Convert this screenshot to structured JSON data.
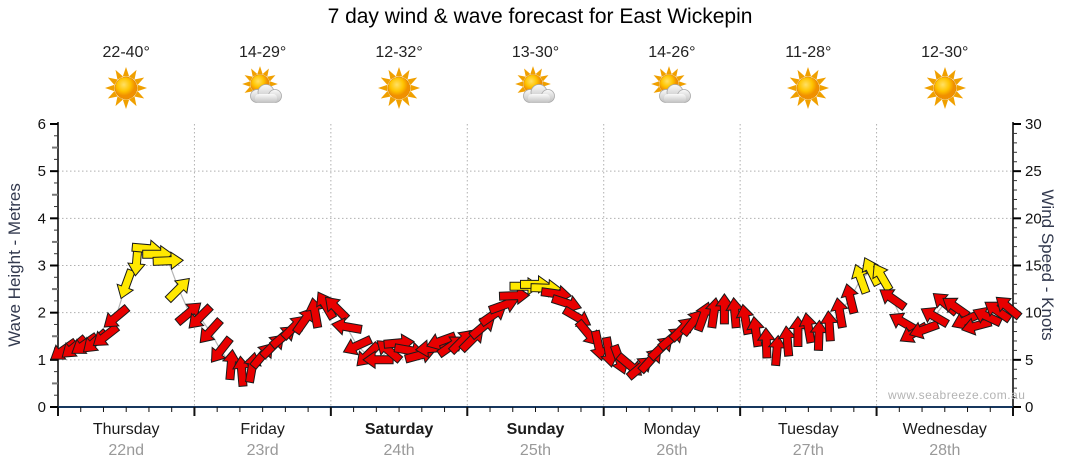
{
  "title": "7 day wind & wave forecast for East Wickepin",
  "watermark": "www.seabreeze.com.au",
  "days": [
    {
      "name": "Thursday",
      "date": "22nd",
      "temp": "22-40°",
      "icon": "sunny",
      "bold": false
    },
    {
      "name": "Friday",
      "date": "23rd",
      "temp": "14-29°",
      "icon": "partly-cloudy",
      "bold": false
    },
    {
      "name": "Saturday",
      "date": "24th",
      "temp": "12-32°",
      "icon": "sunny",
      "bold": true
    },
    {
      "name": "Sunday",
      "date": "25th",
      "temp": "13-30°",
      "icon": "partly-cloudy",
      "bold": true
    },
    {
      "name": "Monday",
      "date": "26th",
      "temp": "14-26°",
      "icon": "partly-cloudy",
      "bold": false
    },
    {
      "name": "Tuesday",
      "date": "27th",
      "temp": "11-28°",
      "icon": "sunny",
      "bold": false
    },
    {
      "name": "Wednesday",
      "date": "28th",
      "temp": "12-30°",
      "icon": "sunny",
      "bold": false
    }
  ],
  "chart_data": {
    "type": "line",
    "description": "Wind arrows plotted by wind speed (right axis, equivalently wave height on left axis); arrow rotation shows wind direction (degrees the arrow points toward, 0=up/N, 90=right/E); colour shows strength band (red lighter, yellow stronger >=12.5 knots)",
    "left_axis": {
      "label": "Wave Height - Metres",
      "min": 0,
      "max": 6,
      "tick_step": 1
    },
    "right_axis": {
      "label": "Wind Speed - Knots",
      "min": 0,
      "max": 30,
      "tick_step": 5
    },
    "x_axis": {
      "categories": [
        "Thursday 22nd",
        "Friday 23rd",
        "Saturday 24th",
        "Sunday 25th",
        "Monday 26th",
        "Tuesday 27th",
        "Wednesday 28th"
      ],
      "points_per_day": 13
    },
    "grid": true,
    "point_format": [
      "wind_speed_knots",
      "direction_deg",
      "color"
    ],
    "series": [
      {
        "name": "Wind speed & direction",
        "points": [
          [
            6,
            235,
            "r"
          ],
          [
            6.3,
            230,
            "r"
          ],
          [
            6.6,
            235,
            "r"
          ],
          [
            6.9,
            228,
            "r"
          ],
          [
            7.5,
            232,
            "r"
          ],
          [
            9.5,
            230,
            "r"
          ],
          [
            13,
            200,
            "y"
          ],
          [
            15.5,
            185,
            "y"
          ],
          [
            16.8,
            95,
            "y"
          ],
          [
            16.2,
            90,
            "y"
          ],
          [
            15.5,
            88,
            "y"
          ],
          [
            12.5,
            45,
            "y"
          ],
          [
            10,
            50,
            "r"
          ],
          [
            9.5,
            225,
            "r"
          ],
          [
            8,
            222,
            "r"
          ],
          [
            6,
            218,
            "r"
          ],
          [
            4.5,
            5,
            "r"
          ],
          [
            3.8,
            355,
            "r"
          ],
          [
            4.2,
            10,
            "r"
          ],
          [
            5.5,
            40,
            "r"
          ],
          [
            6.5,
            45,
            "r"
          ],
          [
            7.5,
            50,
            "r"
          ],
          [
            8.5,
            45,
            "r"
          ],
          [
            9.2,
            35,
            "r"
          ],
          [
            10,
            350,
            "r"
          ],
          [
            10.8,
            330,
            "r"
          ],
          [
            10.5,
            315,
            "r"
          ],
          [
            8.5,
            280,
            "r"
          ],
          [
            6.5,
            245,
            "r"
          ],
          [
            5.5,
            225,
            "r"
          ],
          [
            5,
            270,
            "r"
          ],
          [
            6,
            310,
            "r"
          ],
          [
            6.8,
            85,
            "r"
          ],
          [
            6,
            100,
            "r"
          ],
          [
            5.5,
            75,
            "r"
          ],
          [
            6.2,
            265,
            "r"
          ],
          [
            7,
            250,
            "r"
          ],
          [
            6.5,
            55,
            "r"
          ],
          [
            7,
            45,
            "r"
          ],
          [
            7.2,
            45,
            "r"
          ],
          [
            8.5,
            50,
            "r"
          ],
          [
            9.8,
            55,
            "r"
          ],
          [
            10.8,
            70,
            "r"
          ],
          [
            11.8,
            88,
            "r"
          ],
          [
            12.8,
            90,
            "y"
          ],
          [
            13,
            90,
            "y"
          ],
          [
            12.6,
            92,
            "y"
          ],
          [
            12,
            98,
            "r"
          ],
          [
            11,
            108,
            "r"
          ],
          [
            9.5,
            120,
            "r"
          ],
          [
            7.8,
            140,
            "r"
          ],
          [
            6.5,
            168,
            "r"
          ],
          [
            5.8,
            170,
            "r"
          ],
          [
            5,
            160,
            "r"
          ],
          [
            4.4,
            130,
            "r"
          ],
          [
            4.2,
            50,
            "r"
          ],
          [
            5,
            42,
            "r"
          ],
          [
            6.3,
            46,
            "r"
          ],
          [
            7.3,
            50,
            "r"
          ],
          [
            8.3,
            45,
            "r"
          ],
          [
            9,
            38,
            "r"
          ],
          [
            9.6,
            20,
            "r"
          ],
          [
            10,
            8,
            "r"
          ],
          [
            10.4,
            0,
            "r"
          ],
          [
            10,
            355,
            "r"
          ],
          [
            9.3,
            350,
            "r"
          ],
          [
            8,
            352,
            "r"
          ],
          [
            6.8,
            358,
            "r"
          ],
          [
            6,
            5,
            "r"
          ],
          [
            7,
            355,
            "r"
          ],
          [
            8,
            0,
            "r"
          ],
          [
            8.4,
            350,
            "r"
          ],
          [
            7.6,
            2,
            "r"
          ],
          [
            8.6,
            356,
            "r"
          ],
          [
            10,
            350,
            "r"
          ],
          [
            11.5,
            346,
            "r"
          ],
          [
            13.6,
            340,
            "y"
          ],
          [
            14.4,
            334,
            "y"
          ],
          [
            13.8,
            330,
            "y"
          ],
          [
            11.5,
            305,
            "r"
          ],
          [
            9,
            300,
            "r"
          ],
          [
            7.8,
            240,
            "r"
          ],
          [
            8.2,
            250,
            "r"
          ],
          [
            9.6,
            300,
            "r"
          ],
          [
            11,
            310,
            "r"
          ],
          [
            10.6,
            305,
            "r"
          ],
          [
            9.2,
            245,
            "r"
          ],
          [
            8.6,
            255,
            "r"
          ],
          [
            9.6,
            295,
            "r"
          ],
          [
            10.2,
            305,
            "r"
          ],
          [
            10.6,
            310,
            "r"
          ]
        ]
      }
    ]
  },
  "colors": {
    "arrow_red": "#e80000",
    "arrow_yellow": "#ffe800",
    "arrow_outline": "#1a1a1a",
    "connector_line": "#b5b5b5",
    "grid": "#b0b0b0",
    "axis_line": "#000000",
    "bottom_axis_line": "#17375e",
    "axis_title": "#333a4f",
    "tick_label": "#111111",
    "date_label": "#999999",
    "watermark": "#b3b3b3",
    "sun": "#ffb300",
    "cloud": "#d9d9d9"
  }
}
